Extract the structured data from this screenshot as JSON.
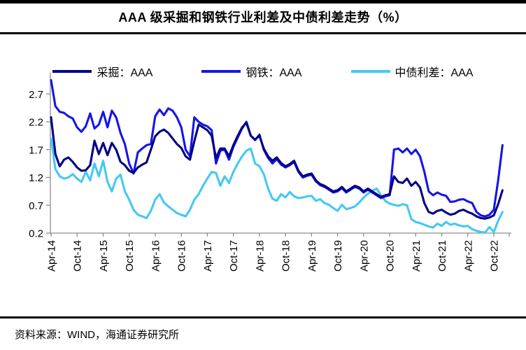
{
  "title": "AAA 级采掘和钢铁行业利差及中债利差走势（%）",
  "footer": {
    "source_text": "资料来源：WIND，海通证券研究所"
  },
  "legend": {
    "position": "top",
    "items": [
      {
        "id": "caijue-aaa",
        "label": "采掘：AAA",
        "color": "#000087"
      },
      {
        "id": "gangtie-aaa",
        "label": "钢铁：AAA",
        "color": "#1515E8"
      },
      {
        "id": "zhongzhai-aaa",
        "label": "中债利差：AAA",
        "color": "#45C8F2"
      }
    ]
  },
  "chart_data": {
    "type": "line",
    "title": "AAA 级采掘和钢铁行业利差及中债利差走势（%）",
    "unit": "%",
    "x_interval": "monthly",
    "x_start": "2014-04",
    "x_end": "2022-12",
    "x_labels": [
      "Apr-14",
      "Oct-14",
      "Apr-15",
      "Oct-15",
      "Apr-16",
      "Oct-16",
      "Apr-17",
      "Oct-17",
      "Apr-18",
      "Oct-18",
      "Apr-19",
      "Oct-19",
      "Apr-20",
      "Oct-20",
      "Apr-21",
      "Oct-21",
      "Apr-22",
      "Oct-22"
    ],
    "y_ticks": [
      2.7,
      2.2,
      1.7,
      1.2,
      0.7,
      0.2
    ],
    "ylim": [
      0.2,
      2.95
    ],
    "grid": false,
    "legend_position": "top",
    "axis_color": "#8E8E8E",
    "series": [
      {
        "id": "caijue-aaa",
        "name": "采掘：AAA",
        "color": "#000087",
        "values": [
          2.28,
          1.62,
          1.4,
          1.52,
          1.56,
          1.48,
          1.38,
          1.32,
          1.33,
          1.42,
          1.86,
          1.62,
          1.82,
          1.6,
          1.82,
          1.7,
          1.48,
          1.42,
          1.32,
          1.28,
          1.38,
          1.43,
          1.47,
          1.7,
          1.94,
          2.02,
          2.06,
          2.0,
          1.9,
          1.8,
          1.73,
          1.58,
          1.52,
          1.85,
          2.15,
          2.1,
          2.05,
          1.95,
          1.55,
          1.72,
          1.72,
          1.58,
          1.78,
          1.95,
          2.1,
          2.18,
          1.95,
          1.88,
          1.95,
          1.72,
          1.58,
          1.5,
          1.56,
          1.46,
          1.4,
          1.44,
          1.5,
          1.32,
          1.22,
          1.25,
          1.27,
          1.15,
          1.08,
          1.05,
          1.0,
          0.95,
          0.97,
          1.03,
          0.95,
          1.0,
          1.05,
          1.02,
          0.95,
          1.0,
          0.95,
          0.9,
          0.85,
          0.88,
          0.9,
          1.22,
          1.12,
          1.1,
          1.18,
          1.05,
          1.12,
          1.02,
          0.74,
          0.58,
          0.55,
          0.6,
          0.62,
          0.57,
          0.53,
          0.55,
          0.6,
          0.62,
          0.58,
          0.55,
          0.5,
          0.47,
          0.46,
          0.48,
          0.52,
          0.72,
          0.97
        ]
      },
      {
        "id": "gangtie-aaa",
        "name": "钢铁：AAA",
        "color": "#1515E8",
        "values": [
          2.95,
          2.48,
          2.38,
          2.36,
          2.3,
          2.26,
          2.1,
          2.02,
          2.12,
          2.35,
          2.08,
          2.15,
          2.38,
          2.1,
          2.4,
          2.28,
          2.0,
          1.8,
          1.45,
          1.27,
          1.65,
          1.72,
          1.78,
          1.8,
          2.3,
          2.42,
          2.32,
          2.44,
          2.4,
          2.28,
          2.1,
          1.7,
          1.58,
          2.28,
          2.2,
          2.15,
          2.12,
          2.05,
          1.45,
          1.68,
          1.7,
          1.52,
          1.75,
          1.92,
          2.08,
          2.2,
          1.95,
          1.87,
          1.97,
          1.7,
          1.55,
          1.45,
          1.53,
          1.43,
          1.38,
          1.42,
          1.48,
          1.3,
          1.2,
          1.23,
          1.25,
          1.13,
          1.06,
          1.03,
          0.98,
          0.93,
          0.95,
          1.01,
          0.93,
          0.98,
          1.03,
          1.0,
          0.93,
          0.98,
          0.93,
          0.88,
          0.83,
          0.86,
          0.88,
          1.7,
          1.72,
          1.65,
          1.72,
          1.62,
          1.7,
          1.58,
          1.3,
          0.95,
          0.88,
          0.93,
          0.89,
          0.87,
          0.76,
          0.77,
          0.8,
          0.81,
          0.77,
          0.74,
          0.58,
          0.52,
          0.5,
          0.53,
          0.62,
          1.15,
          1.78
        ]
      },
      {
        "id": "zhongzhai-aaa",
        "name": "中债利差：AAA",
        "color": "#45C8F2",
        "values": [
          1.9,
          1.35,
          1.22,
          1.18,
          1.2,
          1.26,
          1.18,
          1.12,
          1.3,
          1.15,
          1.45,
          1.22,
          1.5,
          1.12,
          0.95,
          1.18,
          1.25,
          0.95,
          0.8,
          0.62,
          0.53,
          0.5,
          0.47,
          0.6,
          0.8,
          0.9,
          0.75,
          0.68,
          0.62,
          0.56,
          0.53,
          0.5,
          0.62,
          0.8,
          0.9,
          1.05,
          1.18,
          1.3,
          1.28,
          1.05,
          1.22,
          1.1,
          1.3,
          1.45,
          1.58,
          1.68,
          1.72,
          1.45,
          1.4,
          1.26,
          1.0,
          0.82,
          0.78,
          0.9,
          0.84,
          0.94,
          0.86,
          0.83,
          0.84,
          0.86,
          0.87,
          0.78,
          0.81,
          0.74,
          0.71,
          0.65,
          0.6,
          0.71,
          0.63,
          0.65,
          0.68,
          0.75,
          0.84,
          0.91,
          0.96,
          1.0,
          0.88,
          0.78,
          0.73,
          0.71,
          0.69,
          0.72,
          0.7,
          0.45,
          0.4,
          0.38,
          0.35,
          0.32,
          0.3,
          0.37,
          0.33,
          0.4,
          0.35,
          0.37,
          0.34,
          0.32,
          0.33,
          0.27,
          0.24,
          0.22,
          0.21,
          0.31,
          0.22,
          0.42,
          0.58
        ]
      }
    ]
  }
}
